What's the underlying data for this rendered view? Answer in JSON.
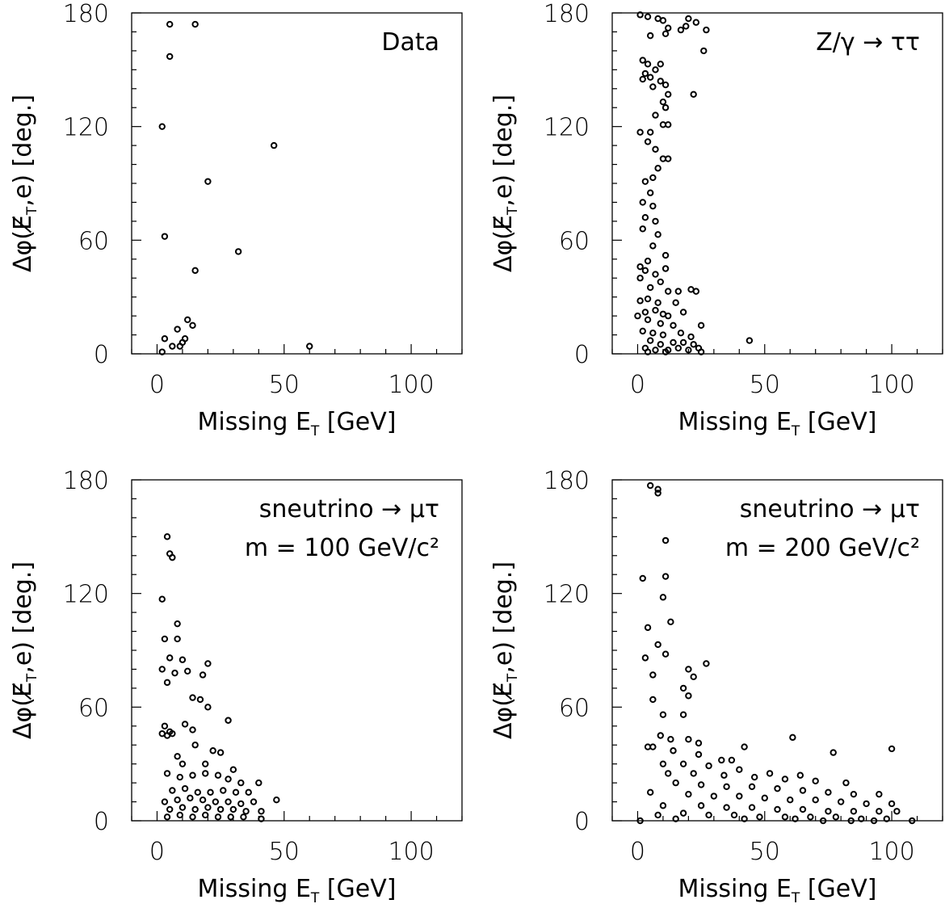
{
  "chart_data": [
    {
      "type": "scatter",
      "title": "",
      "annotation": [
        "Data"
      ],
      "xlabel": "Missing E",
      "xlabel_sub": "T",
      "xlabel_unit": " [GeV]",
      "ylabel": "Δφ(E̸",
      "ylabel_sub": "T",
      "ylabel_rest": ",e) [deg.]",
      "xlim": [
        -10,
        120
      ],
      "ylim": [
        0,
        180
      ],
      "xticks": [
        0,
        50,
        100
      ],
      "yticks": [
        0,
        60,
        120,
        180
      ],
      "points": [
        [
          5,
          174
        ],
        [
          15,
          174
        ],
        [
          5,
          157
        ],
        [
          2,
          120
        ],
        [
          46,
          110
        ],
        [
          20,
          91
        ],
        [
          3,
          62
        ],
        [
          32,
          54
        ],
        [
          15,
          44
        ],
        [
          12,
          18
        ],
        [
          14,
          15
        ],
        [
          3,
          8
        ],
        [
          8,
          13
        ],
        [
          10,
          6
        ],
        [
          11,
          8
        ],
        [
          6,
          4
        ],
        [
          9,
          4
        ],
        [
          2,
          1
        ],
        [
          60,
          4
        ]
      ]
    },
    {
      "type": "scatter",
      "title": "",
      "annotation": [
        "Z/γ → ττ"
      ],
      "xlabel": "Missing E",
      "xlabel_sub": "T",
      "xlabel_unit": " [GeV]",
      "ylabel": "Δφ(E̸",
      "ylabel_sub": "T",
      "ylabel_rest": ",e) [deg.]",
      "xlim": [
        -10,
        120
      ],
      "ylim": [
        0,
        180
      ],
      "xticks": [
        0,
        50,
        100
      ],
      "yticks": [
        0,
        60,
        120,
        180
      ],
      "points": [
        [
          1,
          179
        ],
        [
          4,
          178
        ],
        [
          8,
          177
        ],
        [
          10,
          176
        ],
        [
          20,
          177
        ],
        [
          23,
          175
        ],
        [
          12,
          172
        ],
        [
          17,
          171
        ],
        [
          19,
          173
        ],
        [
          27,
          171
        ],
        [
          5,
          168
        ],
        [
          11,
          169
        ],
        [
          26,
          160
        ],
        [
          2,
          155
        ],
        [
          4,
          153
        ],
        [
          9,
          153
        ],
        [
          7,
          150
        ],
        [
          3,
          148
        ],
        [
          5,
          146
        ],
        [
          2,
          145
        ],
        [
          9,
          144
        ],
        [
          11,
          142
        ],
        [
          6,
          141
        ],
        [
          12,
          137
        ],
        [
          10,
          133
        ],
        [
          22,
          137
        ],
        [
          11,
          130
        ],
        [
          7,
          126
        ],
        [
          10,
          121
        ],
        [
          12,
          121
        ],
        [
          5,
          117
        ],
        [
          1,
          117
        ],
        [
          4,
          112
        ],
        [
          7,
          108
        ],
        [
          10,
          103
        ],
        [
          12,
          103
        ],
        [
          8,
          98
        ],
        [
          3,
          91
        ],
        [
          6,
          93
        ],
        [
          5,
          85
        ],
        [
          2,
          80
        ],
        [
          6,
          78
        ],
        [
          3,
          72
        ],
        [
          7,
          70
        ],
        [
          2,
          66
        ],
        [
          8,
          63
        ],
        [
          6,
          57
        ],
        [
          11,
          52
        ],
        [
          4,
          49
        ],
        [
          1,
          46
        ],
        [
          3,
          44
        ],
        [
          7,
          42
        ],
        [
          11,
          45
        ],
        [
          9,
          38
        ],
        [
          1,
          40
        ],
        [
          5,
          35
        ],
        [
          12,
          33
        ],
        [
          16,
          33
        ],
        [
          21,
          34
        ],
        [
          23,
          33
        ],
        [
          4,
          29
        ],
        [
          8,
          27
        ],
        [
          15,
          27
        ],
        [
          1,
          28
        ],
        [
          3,
          22
        ],
        [
          7,
          23
        ],
        [
          18,
          22
        ],
        [
          10,
          21
        ],
        [
          12,
          20
        ],
        [
          0,
          20
        ],
        [
          4,
          18
        ],
        [
          9,
          16
        ],
        [
          14,
          15
        ],
        [
          25,
          15
        ],
        [
          2,
          12
        ],
        [
          6,
          11
        ],
        [
          10,
          10
        ],
        [
          17,
          11
        ],
        [
          21,
          9
        ],
        [
          5,
          7
        ],
        [
          9,
          5
        ],
        [
          14,
          6
        ],
        [
          18,
          6
        ],
        [
          22,
          5
        ],
        [
          44,
          7
        ],
        [
          3,
          3
        ],
        [
          7,
          2
        ],
        [
          12,
          2
        ],
        [
          16,
          3
        ],
        [
          20,
          2
        ],
        [
          24,
          3
        ],
        [
          25,
          1
        ],
        [
          4,
          1
        ],
        [
          11,
          1
        ]
      ]
    },
    {
      "type": "scatter",
      "title": "",
      "annotation": [
        "sneutrino → μτ",
        "m = 100 GeV/c²"
      ],
      "xlabel": "Missing E",
      "xlabel_sub": "T",
      "xlabel_unit": " [GeV]",
      "ylabel": "Δφ(E̸",
      "ylabel_sub": "T",
      "ylabel_rest": ",e) [deg.]",
      "xlim": [
        -10,
        120
      ],
      "ylim": [
        0,
        180
      ],
      "xticks": [
        0,
        50,
        100
      ],
      "yticks": [
        0,
        60,
        120,
        180
      ],
      "points": [
        [
          4,
          150
        ],
        [
          5,
          141
        ],
        [
          6,
          139
        ],
        [
          2,
          117
        ],
        [
          8,
          104
        ],
        [
          3,
          96
        ],
        [
          8,
          96
        ],
        [
          5,
          86
        ],
        [
          10,
          85
        ],
        [
          7,
          78
        ],
        [
          2,
          80
        ],
        [
          12,
          79
        ],
        [
          20,
          83
        ],
        [
          18,
          77
        ],
        [
          4,
          73
        ],
        [
          14,
          65
        ],
        [
          17,
          64
        ],
        [
          20,
          60
        ],
        [
          28,
          53
        ],
        [
          3,
          50
        ],
        [
          5,
          47
        ],
        [
          4,
          45
        ],
        [
          2,
          46
        ],
        [
          6,
          46
        ],
        [
          11,
          51
        ],
        [
          14,
          48
        ],
        [
          22,
          37
        ],
        [
          8,
          34
        ],
        [
          15,
          40
        ],
        [
          25,
          36
        ],
        [
          10,
          30
        ],
        [
          19,
          30
        ],
        [
          30,
          27
        ],
        [
          4,
          25
        ],
        [
          9,
          23
        ],
        [
          14,
          24
        ],
        [
          19,
          25
        ],
        [
          24,
          24
        ],
        [
          28,
          22
        ],
        [
          33,
          20
        ],
        [
          40,
          20
        ],
        [
          6,
          16
        ],
        [
          11,
          17
        ],
        [
          16,
          15
        ],
        [
          21,
          15
        ],
        [
          26,
          16
        ],
        [
          31,
          15
        ],
        [
          36,
          15
        ],
        [
          3,
          10
        ],
        [
          8,
          11
        ],
        [
          13,
          12
        ],
        [
          18,
          11
        ],
        [
          23,
          10
        ],
        [
          28,
          10
        ],
        [
          33,
          9
        ],
        [
          38,
          10
        ],
        [
          47,
          11
        ],
        [
          5,
          6
        ],
        [
          10,
          7
        ],
        [
          15,
          6
        ],
        [
          20,
          7
        ],
        [
          25,
          6
        ],
        [
          30,
          6
        ],
        [
          35,
          5
        ],
        [
          41,
          5
        ],
        [
          4,
          2
        ],
        [
          9,
          3
        ],
        [
          14,
          2
        ],
        [
          19,
          3
        ],
        [
          24,
          2
        ],
        [
          29,
          2
        ],
        [
          34,
          2
        ],
        [
          41,
          1
        ]
      ]
    },
    {
      "type": "scatter",
      "title": "",
      "annotation": [
        "sneutrino → μτ",
        "m = 200 GeV/c²"
      ],
      "xlabel": "Missing E",
      "xlabel_sub": "T",
      "xlabel_unit": " [GeV]",
      "ylabel": "Δφ(E̸",
      "ylabel_sub": "T",
      "ylabel_rest": ",e) [deg.]",
      "xlim": [
        -10,
        120
      ],
      "ylim": [
        0,
        180
      ],
      "xticks": [
        0,
        50,
        100
      ],
      "yticks": [
        0,
        60,
        120,
        180
      ],
      "points": [
        [
          5,
          177
        ],
        [
          8,
          175
        ],
        [
          8,
          173
        ],
        [
          11,
          148
        ],
        [
          2,
          128
        ],
        [
          11,
          129
        ],
        [
          10,
          118
        ],
        [
          13,
          105
        ],
        [
          4,
          102
        ],
        [
          8,
          93
        ],
        [
          3,
          86
        ],
        [
          11,
          88
        ],
        [
          6,
          77
        ],
        [
          20,
          80
        ],
        [
          22,
          76
        ],
        [
          27,
          83
        ],
        [
          18,
          70
        ],
        [
          20,
          66
        ],
        [
          6,
          64
        ],
        [
          10,
          56
        ],
        [
          18,
          56
        ],
        [
          9,
          45
        ],
        [
          13,
          43
        ],
        [
          20,
          43
        ],
        [
          24,
          41
        ],
        [
          4,
          39
        ],
        [
          6,
          39
        ],
        [
          14,
          37
        ],
        [
          24,
          35
        ],
        [
          33,
          32
        ],
        [
          37,
          32
        ],
        [
          42,
          39
        ],
        [
          61,
          44
        ],
        [
          77,
          36
        ],
        [
          100,
          38
        ],
        [
          10,
          30
        ],
        [
          18,
          30
        ],
        [
          28,
          29
        ],
        [
          40,
          27
        ],
        [
          52,
          25
        ],
        [
          64,
          24
        ],
        [
          12,
          25
        ],
        [
          22,
          25
        ],
        [
          34,
          24
        ],
        [
          46,
          23
        ],
        [
          58,
          22
        ],
        [
          70,
          21
        ],
        [
          82,
          20
        ],
        [
          15,
          20
        ],
        [
          25,
          19
        ],
        [
          35,
          18
        ],
        [
          45,
          18
        ],
        [
          55,
          17
        ],
        [
          65,
          16
        ],
        [
          75,
          15
        ],
        [
          85,
          14
        ],
        [
          95,
          14
        ],
        [
          5,
          15
        ],
        [
          20,
          14
        ],
        [
          30,
          13
        ],
        [
          40,
          13
        ],
        [
          50,
          12
        ],
        [
          60,
          11
        ],
        [
          70,
          11
        ],
        [
          80,
          10
        ],
        [
          90,
          9
        ],
        [
          100,
          9
        ],
        [
          10,
          8
        ],
        [
          25,
          8
        ],
        [
          35,
          7
        ],
        [
          45,
          7
        ],
        [
          55,
          6
        ],
        [
          65,
          6
        ],
        [
          75,
          5
        ],
        [
          85,
          5
        ],
        [
          95,
          5
        ],
        [
          102,
          5
        ],
        [
          8,
          3
        ],
        [
          18,
          4
        ],
        [
          28,
          3
        ],
        [
          38,
          3
        ],
        [
          48,
          2
        ],
        [
          58,
          2
        ],
        [
          68,
          2
        ],
        [
          78,
          2
        ],
        [
          88,
          1
        ],
        [
          98,
          1
        ],
        [
          108,
          0
        ],
        [
          1,
          0
        ],
        [
          15,
          1
        ],
        [
          42,
          1
        ],
        [
          62,
          1
        ],
        [
          73,
          0
        ],
        [
          84,
          0
        ],
        [
          93,
          0
        ]
      ]
    }
  ]
}
